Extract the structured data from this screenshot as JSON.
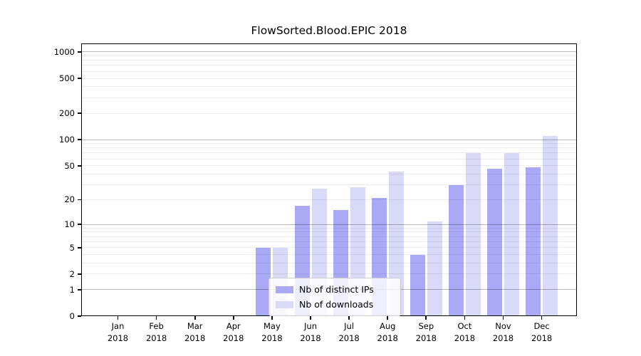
{
  "chart_data": {
    "type": "bar",
    "title": "FlowSorted.Blood.EPIC 2018",
    "year_label": "2018",
    "months": [
      "Jan",
      "Feb",
      "Mar",
      "Apr",
      "May",
      "Jun",
      "Jul",
      "Aug",
      "Sep",
      "Oct",
      "Nov",
      "Dec"
    ],
    "series": [
      {
        "name": "Nb of distinct IPs",
        "color": "#a9a9f5",
        "values": [
          0,
          0,
          0,
          0,
          5,
          17,
          15,
          21,
          4,
          30,
          46,
          48
        ]
      },
      {
        "name": "Nb of downloads",
        "color": "#d9d9f8",
        "values": [
          0,
          0,
          0,
          0,
          5,
          27,
          28,
          43,
          11,
          70,
          70,
          110
        ]
      }
    ],
    "y_ticks": [
      0,
      1,
      2,
      5,
      10,
      20,
      50,
      100,
      200,
      500,
      1000
    ],
    "y_scale": "log10(1+x)",
    "ylim": [
      0,
      1250
    ],
    "grid": "horizontal, minor lines at 2-9 per decade, major lines at powers of 10",
    "legend_position": "inside bottom-center",
    "xlabel": "",
    "ylabel": ""
  }
}
